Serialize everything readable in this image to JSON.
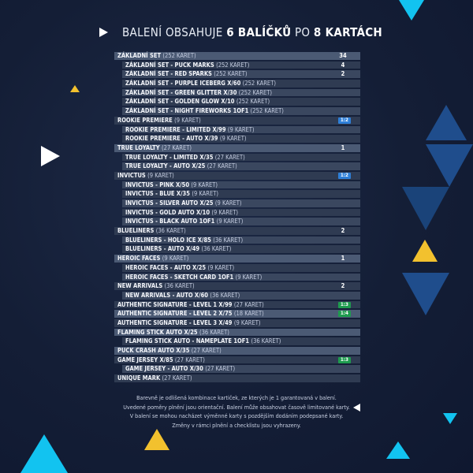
{
  "header": {
    "prefix": "BALENÍ OBSAHUJE ",
    "packs": "6 BALÍČKŮ",
    "mid": " PO ",
    "cards": "8 KARTÁCH"
  },
  "rows": [
    {
      "label": "ZÁKLADNÍ SET",
      "count": "(252 KARET)",
      "level": "top",
      "value": "34"
    },
    {
      "label": "ZÁKLADNÍ SET - PUCK MARKS",
      "count": "(252 KARET)",
      "level": "sub",
      "value": "4"
    },
    {
      "label": "ZÁKLADNÍ SET - RED SPARKS",
      "count": "(252 KARET)",
      "level": "sub",
      "value": "2"
    },
    {
      "label": "ZÁKLADNÍ SET - PURPLE ICEBERG X/60",
      "count": "(252 KARET)",
      "level": "sub"
    },
    {
      "label": "ZÁKLADNÍ SET - GREEN GLITTER X/30",
      "count": "(252 KARET)",
      "level": "sub"
    },
    {
      "label": "ZÁKLADNÍ SET - GOLDEN GLOW X/10",
      "count": "(252 KARET)",
      "level": "sub"
    },
    {
      "label": "ZÁKLADNÍ SET - NIGHT FIREWORKS 1OF1",
      "count": "(252 KARET)",
      "level": "sub"
    },
    {
      "label": "ROOKIE PREMIERE",
      "count": "(9 KARET)",
      "level": "top",
      "badge": "1:2",
      "badge_color": "blue"
    },
    {
      "label": "ROOKIE PREMIERE - LIMITED X/99",
      "count": "(9 KARET)",
      "level": "sub"
    },
    {
      "label": "ROOKIE PREMIERE - AUTO X/39",
      "count": "(9 KARET)",
      "level": "sub"
    },
    {
      "label": "TRUE LOYALTY",
      "count": "(27 KARET)",
      "level": "top",
      "value": "1"
    },
    {
      "label": "TRUE LOYALTY - LIMITED X/35",
      "count": "(27 KARET)",
      "level": "sub"
    },
    {
      "label": "TRUE LOYALTY - AUTO X/25",
      "count": "(27 KARET)",
      "level": "sub"
    },
    {
      "label": "INVICTUS",
      "count": "(9 KARET)",
      "level": "top",
      "badge": "1:2",
      "badge_color": "blue"
    },
    {
      "label": "INVICTUS - PINK X/50",
      "count": "(9 KARET)",
      "level": "sub"
    },
    {
      "label": "INVICTUS - BLUE X/35",
      "count": "(9 KARET)",
      "level": "sub"
    },
    {
      "label": "INVICTUS - SILVER AUTO X/25",
      "count": "(9 KARET)",
      "level": "sub"
    },
    {
      "label": "INVICTUS - GOLD AUTO X/10",
      "count": "(9 KARET)",
      "level": "sub"
    },
    {
      "label": "INVICTUS - BLACK AUTO 1OF1",
      "count": "(9 KARET)",
      "level": "sub"
    },
    {
      "label": "BLUELINERS",
      "count": "(36 KARET)",
      "level": "top",
      "value": "2"
    },
    {
      "label": "BLUELINERS - HOLO ICE X/85",
      "count": "(36 KARET)",
      "level": "sub"
    },
    {
      "label": "BLUELINERS - AUTO X/49",
      "count": "(36 KARET)",
      "level": "sub"
    },
    {
      "label": "HEROIC FACES",
      "count": "(9 KARET)",
      "level": "top",
      "value": "1"
    },
    {
      "label": "HEROIC FACES - AUTO X/25",
      "count": "(9 KARET)",
      "level": "sub"
    },
    {
      "label": "HEROIC FACES - SKETCH CARD 1OF1",
      "count": "(9 KARET)",
      "level": "sub"
    },
    {
      "label": "NEW ARRIVALS",
      "count": "(36 KARET)",
      "level": "top",
      "value": "2"
    },
    {
      "label": "NEW ARRIVALS - AUTO X/60",
      "count": "(36 KARET)",
      "level": "sub"
    },
    {
      "label": "AUTHENTIC  SIGNATURE - LEVEL 1 X/99",
      "count": "(27 KARET)",
      "level": "top",
      "badge": "1:3",
      "badge_color": "green"
    },
    {
      "label": "AUTHENTIC  SIGNATURE - LEVEL 2 X/75",
      "count": "(18 KARET)",
      "level": "top",
      "badge": "1:4",
      "badge_color": "green"
    },
    {
      "label": "AUTHENTIC  SIGNATURE - LEVEL 3 X/49",
      "count": "(9 KARET)",
      "level": "top"
    },
    {
      "label": "FLAMING STICK AUTO X/25",
      "count": "(36 KARET)",
      "level": "top"
    },
    {
      "label": "FLAMING STICK AUTO - NAMEPLATE 1OF1",
      "count": "(36 KARET)",
      "level": "sub"
    },
    {
      "label": "PUCK CRASH AUTO X/35",
      "count": "(27 KARET)",
      "level": "top"
    },
    {
      "label": "GAME JERSEY X/85",
      "count": "(27 KARET)",
      "level": "top",
      "badge": "1:3",
      "badge_color": "green"
    },
    {
      "label": "GAME JERSEY - AUTO X/30",
      "count": "(27 KARET)",
      "level": "sub"
    },
    {
      "label": "UNIQUE MARK",
      "count": "(27 KARET)",
      "level": "top"
    }
  ],
  "footer": [
    "Barevně je odlišená kombinace kartiček, ze kterých je 1 garantovaná v balení.",
    "Uvedené poměry plnění jsou orientační. Balení může obsahovat časově limitované karty.",
    "V balení se mohou nacházet výměnné karty s pozdějším dodáním podepsané karty.",
    "Změny v rámci plnění a checklistu jsou vyhrazeny."
  ],
  "colors": {
    "background": "#141e36",
    "accent_cyan": "#12c3f0",
    "accent_yellow": "#f2c12e",
    "accent_navy": "#1f4d8c",
    "badge_blue": "#2e7fd8",
    "badge_green": "#1e9b4e"
  }
}
